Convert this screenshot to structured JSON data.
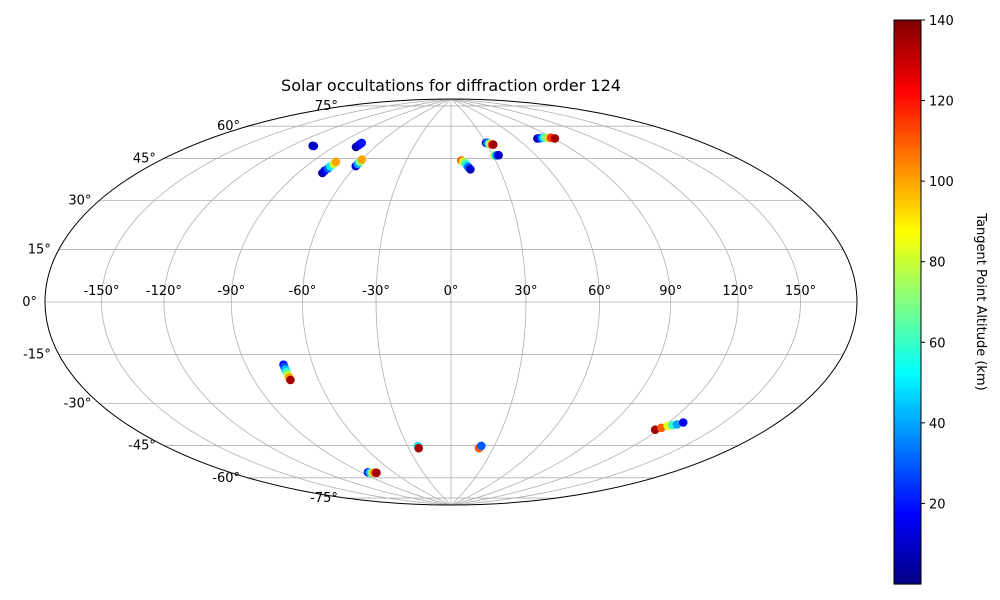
{
  "chart_data": {
    "type": "scatter",
    "projection": "hammer",
    "title": "Solar occultations for diffraction order 124",
    "lon_ticks": [
      "-150°",
      "-120°",
      "-90°",
      "-60°",
      "-30°",
      "0°",
      "30°",
      "60°",
      "90°",
      "120°",
      "150°"
    ],
    "lat_ticks": [
      "-75°",
      "-60°",
      "-45°",
      "-30°",
      "-15°",
      "0°",
      "15°",
      "30°",
      "45°",
      "60°",
      "75°"
    ],
    "grid": true,
    "colorbar": {
      "label": "Tangent Point Altitude (km)",
      "range": [
        0,
        140
      ],
      "ticks": [
        "20",
        "40",
        "60",
        "80",
        "100",
        "120",
        "140"
      ],
      "colormap": "jet"
    },
    "series": [
      {
        "x": [
          -106,
          -105
        ],
        "y": [
          61,
          61
        ],
        "altitude": [
          5,
          10
        ]
      },
      {
        "x": [
          -74,
          -74,
          -74,
          -74
        ],
        "y": [
          63,
          64,
          64.5,
          65
        ],
        "altitude": [
          5,
          10,
          15,
          20
        ]
      },
      {
        "x": [
          -76,
          -76,
          -75.5,
          -75.5,
          -75,
          -75
        ],
        "y": [
          51,
          52,
          53,
          54,
          55,
          56
        ],
        "altitude": [
          5,
          15,
          30,
          50,
          80,
          100
        ]
      },
      {
        "x": [
          -60,
          -60,
          -60,
          -60
        ],
        "y": [
          55,
          56,
          57,
          58
        ],
        "altitude": [
          10,
          40,
          70,
          100
        ]
      },
      {
        "x": [
          7,
          8,
          9,
          10,
          11,
          12
        ],
        "y": [
          59,
          58.5,
          58,
          57,
          56,
          55
        ],
        "altitude": [
          110,
          90,
          70,
          50,
          30,
          10
        ]
      },
      {
        "x": [
          30,
          31,
          32,
          33,
          34,
          35
        ],
        "y": [
          67,
          67,
          66.5,
          66.5,
          66,
          66
        ],
        "altitude": [
          10,
          30,
          50,
          80,
          110,
          135
        ]
      },
      {
        "x": [
          31,
          32,
          33,
          34
        ],
        "y": [
          61,
          61,
          61,
          61
        ],
        "altitude": [
          80,
          50,
          30,
          10
        ]
      },
      {
        "x": [
          77,
          79,
          81,
          83,
          85,
          87,
          89,
          91
        ],
        "y": [
          67,
          67,
          67,
          67,
          67,
          66.5,
          66.5,
          66
        ],
        "altitude": [
          5,
          15,
          30,
          50,
          70,
          95,
          115,
          135
        ]
      },
      {
        "x": [
          -73,
          -73,
          -73,
          -73,
          -73,
          -73,
          -73
        ],
        "y": [
          -24,
          -25,
          -26,
          -27,
          -28,
          -29,
          -30
        ],
        "altitude": [
          20,
          30,
          45,
          60,
          80,
          100,
          135
        ]
      },
      {
        "x": [
          -84,
          -82.5,
          -81,
          -79.5,
          -78,
          -77
        ],
        "y": [
          -70,
          -70.2,
          -70.4,
          -70.5,
          -70.6,
          -70.7
        ],
        "altitude": [
          20,
          45,
          70,
          95,
          115,
          135
        ]
      },
      {
        "x": [
          -23,
          -23
        ],
        "y": [
          -60,
          -61
        ],
        "altitude": [
          50,
          135
        ]
      },
      {
        "x": [
          20,
          20,
          21,
          21
        ],
        "y": [
          -61,
          -61,
          -60,
          -60
        ],
        "altitude": [
          135,
          110,
          60,
          30
        ]
      },
      {
        "x": [
          118,
          120,
          122,
          124,
          126,
          128
        ],
        "y": [
          -47,
          -46,
          -45,
          -44.5,
          -44,
          -43
        ],
        "altitude": [
          135,
          110,
          85,
          60,
          40,
          15
        ]
      }
    ]
  }
}
